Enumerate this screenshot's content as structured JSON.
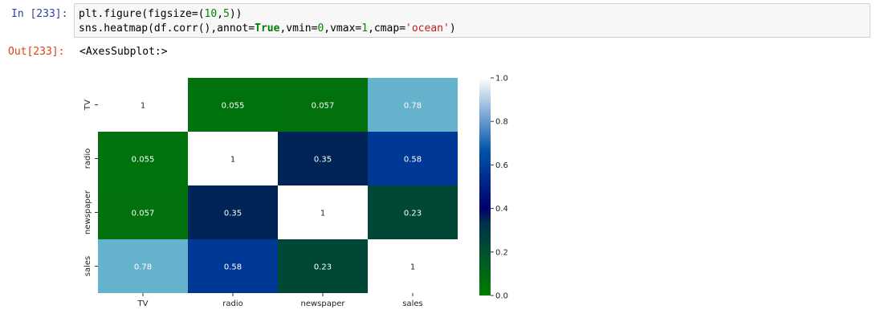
{
  "cell_in": {
    "prompt": "In [233]:",
    "lines": [
      [
        {
          "t": "plt.figure(figsize=(",
          "c": ""
        },
        {
          "t": "10",
          "c": "num"
        },
        {
          "t": ",",
          "c": ""
        },
        {
          "t": "5",
          "c": "num"
        },
        {
          "t": "))",
          "c": ""
        }
      ],
      [
        {
          "t": "sns.heatmap(df.corr(),annot=",
          "c": ""
        },
        {
          "t": "True",
          "c": "kw"
        },
        {
          "t": ",vmin=",
          "c": ""
        },
        {
          "t": "0",
          "c": "num"
        },
        {
          "t": ",vmax=",
          "c": ""
        },
        {
          "t": "1",
          "c": "num"
        },
        {
          "t": ",cmap=",
          "c": ""
        },
        {
          "t": "'ocean'",
          "c": "str"
        },
        {
          "t": ")",
          "c": ""
        }
      ]
    ]
  },
  "cell_out": {
    "prompt": "Out[233]:",
    "text": "<AxesSubplot:>"
  },
  "chart_data": {
    "type": "heatmap",
    "rows": [
      "TV",
      "radio",
      "newspaper",
      "sales"
    ],
    "cols": [
      "TV",
      "radio",
      "newspaper",
      "sales"
    ],
    "values": [
      [
        1,
        0.055,
        0.057,
        0.78
      ],
      [
        0.055,
        1,
        0.35,
        0.58
      ],
      [
        0.057,
        0.35,
        1,
        0.23
      ],
      [
        0.78,
        0.58,
        0.23,
        1
      ]
    ],
    "annotations": [
      [
        "1",
        "0.055",
        "0.057",
        "0.78"
      ],
      [
        "0.055",
        "1",
        "0.35",
        "0.58"
      ],
      [
        "0.057",
        "0.35",
        "1",
        "0.23"
      ],
      [
        "0.78",
        "0.58",
        "0.23",
        "1"
      ]
    ],
    "vmin": 0,
    "vmax": 1,
    "cmap": "ocean",
    "colorbar_ticks": [
      "0.0",
      "0.2",
      "0.4",
      "0.6",
      "0.8",
      "1.0"
    ],
    "colorbar_tick_values": [
      0,
      0.2,
      0.4,
      0.6,
      0.8,
      1.0
    ],
    "title": "",
    "xlabel": "",
    "ylabel": ""
  }
}
